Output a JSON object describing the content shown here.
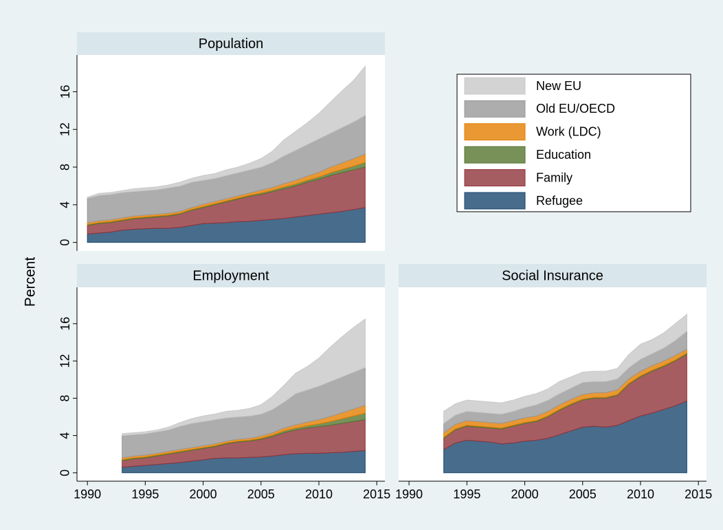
{
  "y_axis_label": "Percent",
  "chart_data": [
    {
      "type": "stacked_area",
      "title": "Population",
      "x": [
        1990,
        1991,
        1992,
        1993,
        1994,
        1995,
        1996,
        1997,
        1998,
        1999,
        2000,
        2001,
        2002,
        2003,
        2004,
        2005,
        2006,
        2007,
        2008,
        2009,
        2010,
        2011,
        2012,
        2013,
        2014
      ],
      "xlim": [
        1989.1,
        2015.7
      ],
      "ylim": [
        -0.9,
        19.9
      ],
      "yticks": [
        0,
        4,
        8,
        12,
        16
      ],
      "series": [
        {
          "name": "Refugee",
          "color": "#1a476f",
          "values": [
            0.9,
            1.0,
            1.1,
            1.3,
            1.4,
            1.45,
            1.5,
            1.5,
            1.6,
            1.8,
            2.0,
            2.05,
            2.1,
            2.2,
            2.25,
            2.35,
            2.45,
            2.55,
            2.7,
            2.85,
            3.0,
            3.15,
            3.3,
            3.5,
            3.7
          ]
        },
        {
          "name": "Family",
          "color": "#90353b",
          "values": [
            0.9,
            1.0,
            1.0,
            1.0,
            1.1,
            1.15,
            1.2,
            1.3,
            1.4,
            1.6,
            1.7,
            1.95,
            2.2,
            2.4,
            2.65,
            2.75,
            2.95,
            3.15,
            3.3,
            3.55,
            3.7,
            3.95,
            4.1,
            4.2,
            4.3
          ]
        },
        {
          "name": "Education",
          "color": "#55752f",
          "values": [
            0.1,
            0.1,
            0.1,
            0.1,
            0.1,
            0.1,
            0.1,
            0.1,
            0.1,
            0.1,
            0.1,
            0.1,
            0.1,
            0.1,
            0.1,
            0.15,
            0.15,
            0.2,
            0.2,
            0.2,
            0.25,
            0.3,
            0.35,
            0.4,
            0.5
          ]
        },
        {
          "name": "Work (LDC)",
          "color": "#e37e00",
          "values": [
            0.2,
            0.2,
            0.2,
            0.2,
            0.2,
            0.2,
            0.2,
            0.2,
            0.2,
            0.2,
            0.25,
            0.25,
            0.25,
            0.25,
            0.25,
            0.3,
            0.3,
            0.35,
            0.4,
            0.45,
            0.5,
            0.6,
            0.7,
            0.8,
            0.9
          ]
        },
        {
          "name": "Old EU/OECD",
          "color": "#999999",
          "values": [
            2.6,
            2.7,
            2.7,
            2.7,
            2.6,
            2.6,
            2.6,
            2.7,
            2.7,
            2.7,
            2.55,
            2.45,
            2.45,
            2.45,
            2.45,
            2.45,
            2.65,
            2.95,
            3.2,
            3.35,
            3.55,
            3.6,
            3.75,
            3.9,
            4.1
          ]
        },
        {
          "name": "New EU",
          "color": "#c8c8c8",
          "values": [
            0.1,
            0.2,
            0.2,
            0.2,
            0.3,
            0.3,
            0.3,
            0.3,
            0.4,
            0.4,
            0.5,
            0.5,
            0.6,
            0.6,
            0.7,
            0.9,
            1.2,
            1.7,
            2.0,
            2.3,
            2.7,
            3.3,
            3.9,
            4.4,
            5.2
          ]
        }
      ]
    },
    {
      "type": "stacked_area",
      "title": "Employment",
      "x": [
        1993,
        1994,
        1995,
        1996,
        1997,
        1998,
        1999,
        2000,
        2001,
        2002,
        2003,
        2004,
        2005,
        2006,
        2007,
        2008,
        2009,
        2010,
        2011,
        2012,
        2013,
        2014
      ],
      "xlim": [
        1989.1,
        2015.7
      ],
      "ylim": [
        -0.9,
        19.9
      ],
      "yticks": [
        0,
        4,
        8,
        12,
        16
      ],
      "xticks": [
        1990,
        1995,
        2000,
        2005,
        2010,
        2015
      ],
      "series": [
        {
          "name": "Refugee",
          "color": "#1a476f",
          "values": [
            0.6,
            0.7,
            0.8,
            0.9,
            1.0,
            1.1,
            1.25,
            1.4,
            1.55,
            1.6,
            1.6,
            1.65,
            1.7,
            1.8,
            1.95,
            2.05,
            2.1,
            2.1,
            2.15,
            2.2,
            2.3,
            2.4
          ]
        },
        {
          "name": "Family",
          "color": "#90353b",
          "values": [
            0.7,
            0.8,
            0.8,
            0.9,
            1.0,
            1.1,
            1.15,
            1.2,
            1.25,
            1.5,
            1.7,
            1.75,
            1.9,
            2.1,
            2.35,
            2.55,
            2.7,
            2.85,
            2.95,
            3.1,
            3.2,
            3.3
          ]
        },
        {
          "name": "Education",
          "color": "#55752f",
          "values": [
            0.1,
            0.1,
            0.1,
            0.1,
            0.1,
            0.1,
            0.1,
            0.1,
            0.1,
            0.1,
            0.1,
            0.1,
            0.1,
            0.15,
            0.2,
            0.2,
            0.25,
            0.3,
            0.4,
            0.5,
            0.6,
            0.7
          ]
        },
        {
          "name": "Work (LDC)",
          "color": "#e37e00",
          "values": [
            0.2,
            0.2,
            0.2,
            0.2,
            0.2,
            0.2,
            0.2,
            0.2,
            0.2,
            0.2,
            0.2,
            0.2,
            0.25,
            0.25,
            0.3,
            0.35,
            0.4,
            0.45,
            0.55,
            0.65,
            0.75,
            0.85
          ]
        },
        {
          "name": "Old EU/OECD",
          "color": "#999999",
          "values": [
            2.4,
            2.3,
            2.3,
            2.3,
            2.3,
            2.5,
            2.6,
            2.6,
            2.6,
            2.5,
            2.4,
            2.4,
            2.35,
            2.5,
            2.8,
            3.35,
            3.45,
            3.6,
            3.75,
            3.85,
            3.95,
            4.05
          ]
        },
        {
          "name": "New EU",
          "color": "#c8c8c8",
          "values": [
            0.2,
            0.2,
            0.2,
            0.2,
            0.3,
            0.4,
            0.5,
            0.6,
            0.6,
            0.7,
            0.7,
            0.8,
            1.0,
            1.4,
            1.8,
            2.2,
            2.5,
            3.0,
            3.7,
            4.3,
            4.8,
            5.2
          ]
        }
      ]
    },
    {
      "type": "stacked_area",
      "title": "Social Insurance",
      "x": [
        1993,
        1994,
        1995,
        1996,
        1997,
        1998,
        1999,
        2000,
        2001,
        2002,
        2003,
        2004,
        2005,
        2006,
        2007,
        2008,
        2009,
        2010,
        2011,
        2012,
        2013,
        2014
      ],
      "xlim": [
        1989.1,
        2015.7
      ],
      "ylim": [
        -0.9,
        19.9
      ],
      "xticks": [
        1990,
        1995,
        2000,
        2005,
        2010,
        2015
      ],
      "series": [
        {
          "name": "Refugee",
          "color": "#1a476f",
          "values": [
            2.5,
            3.2,
            3.5,
            3.4,
            3.3,
            3.1,
            3.2,
            3.4,
            3.5,
            3.7,
            4.1,
            4.5,
            4.9,
            5.0,
            4.9,
            5.1,
            5.6,
            6.1,
            6.4,
            6.8,
            7.2,
            7.7
          ]
        },
        {
          "name": "Family",
          "color": "#90353b",
          "values": [
            1.2,
            1.4,
            1.5,
            1.5,
            1.5,
            1.6,
            1.8,
            1.9,
            2.0,
            2.3,
            2.6,
            2.8,
            2.9,
            3.0,
            3.1,
            3.2,
            3.9,
            4.2,
            4.5,
            4.6,
            4.8,
            5.0
          ]
        },
        {
          "name": "Education",
          "color": "#55752f",
          "values": [
            0.1,
            0.1,
            0.1,
            0.1,
            0.1,
            0.1,
            0.1,
            0.1,
            0.1,
            0.1,
            0.1,
            0.1,
            0.1,
            0.1,
            0.1,
            0.1,
            0.1,
            0.1,
            0.1,
            0.1,
            0.1,
            0.15
          ]
        },
        {
          "name": "Work (LDC)",
          "color": "#e37e00",
          "values": [
            0.5,
            0.5,
            0.5,
            0.5,
            0.5,
            0.5,
            0.5,
            0.5,
            0.5,
            0.5,
            0.5,
            0.5,
            0.5,
            0.5,
            0.5,
            0.5,
            0.5,
            0.5,
            0.5,
            0.5,
            0.5,
            0.4
          ]
        },
        {
          "name": "Old EU/OECD",
          "color": "#999999",
          "values": [
            1.0,
            1.0,
            1.0,
            1.0,
            1.0,
            1.0,
            1.0,
            1.1,
            1.2,
            1.2,
            1.2,
            1.2,
            1.3,
            1.2,
            1.2,
            1.2,
            1.2,
            1.3,
            1.3,
            1.4,
            1.6,
            1.95
          ]
        },
        {
          "name": "New EU",
          "color": "#c8c8c8",
          "values": [
            1.3,
            1.2,
            1.2,
            1.2,
            1.2,
            1.2,
            1.2,
            1.2,
            1.2,
            1.2,
            1.3,
            1.2,
            1.1,
            1.1,
            1.1,
            1.1,
            1.4,
            1.6,
            1.5,
            1.6,
            1.8,
            1.8
          ]
        }
      ]
    }
  ]
}
